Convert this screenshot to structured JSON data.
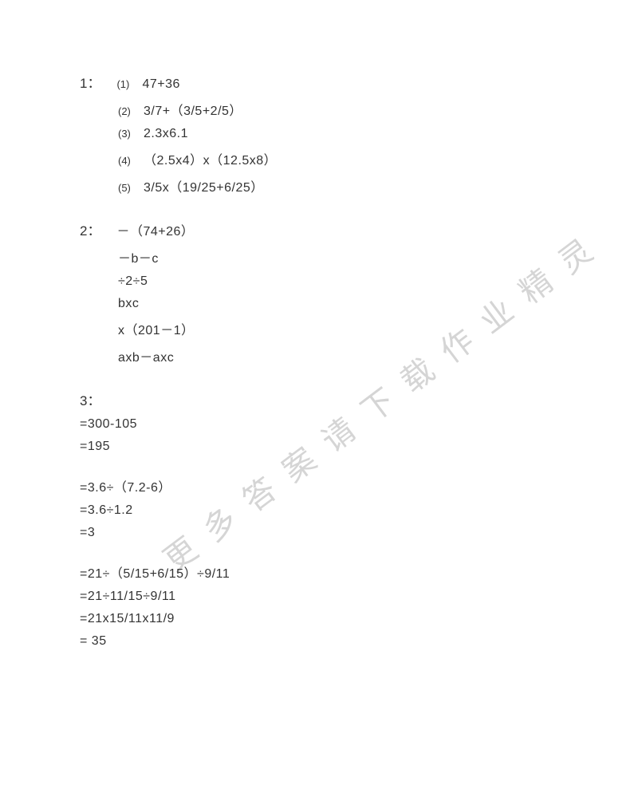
{
  "watermark": "更多答案请下载作业精灵",
  "section1": {
    "label": "1：",
    "items": [
      {
        "num": "(1)",
        "text": "47+36"
      },
      {
        "num": "(2)",
        "text": "3/7+（3/5+2/5）"
      },
      {
        "num": "(3)",
        "text": "2.3x6.1"
      },
      {
        "num": "(4)",
        "text": "（2.5x4）x（12.5x8）"
      },
      {
        "num": "(5)",
        "text": "3/5x（19/25+6/25）"
      }
    ]
  },
  "section2": {
    "label": "2：",
    "firstItem": "－（74+26）",
    "lines": [
      "－b－c",
      "÷2÷5",
      " bxc",
      " x（201－1）",
      " axb－axc"
    ]
  },
  "section3": {
    "label": "3：",
    "groups": [
      [
        "=300-105",
        "=195"
      ],
      [
        "=3.6÷（7.2-6）",
        "=3.6÷1.2",
        "=3"
      ],
      [
        "=21÷（5/15+6/15）÷9/11",
        "=21÷11/15÷9/11",
        "=21x15/11x11/9",
        "= 35"
      ]
    ]
  },
  "colors": {
    "text": "#333333",
    "background": "#ffffff",
    "watermark": "#d5d5d5"
  }
}
